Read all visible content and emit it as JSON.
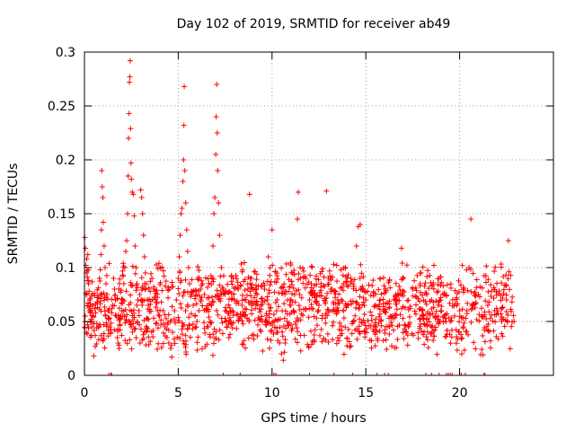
{
  "chart_data": {
    "type": "scatter",
    "title": "Day 102 of 2019, SRMTID for receiver ab49",
    "xlabel": "GPS time / hours",
    "ylabel": "SRMTID / TECUs",
    "xlim": [
      0,
      25
    ],
    "ylim": [
      0,
      0.3
    ],
    "xticks": [
      0,
      5,
      10,
      15,
      20
    ],
    "xtick_labels": [
      "0",
      "5",
      "10",
      "15",
      "20"
    ],
    "yticks": [
      0,
      0.05,
      0.1,
      0.15,
      0.2,
      0.25,
      0.3
    ],
    "ytick_labels": [
      "0",
      "0.05",
      "0.1",
      "0.15",
      "0.2",
      "0.25",
      "0.3"
    ],
    "grid": true,
    "marker": "+",
    "color": "#ff0000",
    "series": [
      {
        "name": "SRMTID",
        "points": [
          [
            0.02,
            0.128
          ],
          [
            0.05,
            0.118
          ],
          [
            0.08,
            0.102
          ],
          [
            0.1,
            0.095
          ],
          [
            0.12,
            0.108
          ],
          [
            0.15,
            0.088
          ],
          [
            0.18,
            0.112
          ],
          [
            0.2,
            0.098
          ],
          [
            0.22,
            0.085
          ],
          [
            0.25,
            0.078
          ],
          [
            0.28,
            0.07
          ],
          [
            0.3,
            0.064
          ],
          [
            0.32,
            0.058
          ],
          [
            0.35,
            0.052
          ],
          [
            0.38,
            0.06
          ],
          [
            0.4,
            0.045
          ],
          [
            0.42,
            0.05
          ],
          [
            0.45,
            0.065
          ],
          [
            0.48,
            0.055
          ],
          [
            0.5,
            0.048
          ],
          [
            0.55,
            0.062
          ],
          [
            0.6,
            0.058
          ],
          [
            0.65,
            0.044
          ],
          [
            0.7,
            0.068
          ],
          [
            0.75,
            0.072
          ],
          [
            0.8,
            0.09
          ],
          [
            0.85,
            0.098
          ],
          [
            0.88,
            0.112
          ],
          [
            0.9,
            0.135
          ],
          [
            0.92,
            0.19
          ],
          [
            0.95,
            0.175
          ],
          [
            0.98,
            0.165
          ],
          [
            1.0,
            0.142
          ],
          [
            1.05,
            0.12
          ],
          [
            1.1,
            0.1
          ],
          [
            1.15,
            0.085
          ],
          [
            1.2,
            0.075
          ],
          [
            1.25,
            0.06
          ],
          [
            1.3,
            0.052
          ],
          [
            1.35,
            0.045
          ],
          [
            1.4,
            0.04
          ],
          [
            1.45,
            0.058
          ],
          [
            1.5,
            0.065
          ],
          [
            1.55,
            0.09
          ],
          [
            1.6,
            0.08
          ],
          [
            1.65,
            0.07
          ],
          [
            1.7,
            0.055
          ],
          [
            1.75,
            0.035
          ],
          [
            1.8,
            0.03
          ],
          [
            1.85,
            0.025
          ],
          [
            1.9,
            0.042
          ],
          [
            1.95,
            0.055
          ],
          [
            2.0,
            0.06
          ],
          [
            2.05,
            0.07
          ],
          [
            2.1,
            0.085
          ],
          [
            2.15,
            0.1
          ],
          [
            2.2,
            0.115
          ],
          [
            2.25,
            0.125
          ],
          [
            2.3,
            0.15
          ],
          [
            2.33,
            0.185
          ],
          [
            2.35,
            0.22
          ],
          [
            2.38,
            0.243
          ],
          [
            2.4,
            0.272
          ],
          [
            2.42,
            0.277
          ],
          [
            2.44,
            0.292
          ],
          [
            2.46,
            0.229
          ],
          [
            2.48,
            0.197
          ],
          [
            2.5,
            0.182
          ],
          [
            2.55,
            0.17
          ],
          [
            2.6,
            0.168
          ],
          [
            2.65,
            0.148
          ],
          [
            2.7,
            0.12
          ],
          [
            2.75,
            0.1
          ],
          [
            2.8,
            0.085
          ],
          [
            2.85,
            0.07
          ],
          [
            2.9,
            0.06
          ],
          [
            2.95,
            0.075
          ],
          [
            3.0,
            0.172
          ],
          [
            3.05,
            0.165
          ],
          [
            3.1,
            0.15
          ],
          [
            3.15,
            0.13
          ],
          [
            3.2,
            0.11
          ],
          [
            3.25,
            0.095
          ],
          [
            3.3,
            0.085
          ],
          [
            3.35,
            0.07
          ],
          [
            3.4,
            0.065
          ],
          [
            3.5,
            0.078
          ],
          [
            3.6,
            0.09
          ],
          [
            3.7,
            0.082
          ],
          [
            3.8,
            0.07
          ],
          [
            3.9,
            0.06
          ],
          [
            4.0,
            0.055
          ],
          [
            4.1,
            0.068
          ],
          [
            4.2,
            0.06
          ],
          [
            4.3,
            0.045
          ],
          [
            4.4,
            0.035
          ],
          [
            4.5,
            0.03
          ],
          [
            4.6,
            0.025
          ],
          [
            4.65,
            0.017
          ],
          [
            4.7,
            0.04
          ],
          [
            4.8,
            0.06
          ],
          [
            4.9,
            0.07
          ],
          [
            5.0,
            0.09
          ],
          [
            5.05,
            0.11
          ],
          [
            5.1,
            0.13
          ],
          [
            5.15,
            0.15
          ],
          [
            5.2,
            0.155
          ],
          [
            5.25,
            0.18
          ],
          [
            5.28,
            0.2
          ],
          [
            5.3,
            0.232
          ],
          [
            5.32,
            0.268
          ],
          [
            5.35,
            0.19
          ],
          [
            5.4,
            0.16
          ],
          [
            5.45,
            0.135
          ],
          [
            5.5,
            0.115
          ],
          [
            5.55,
            0.1
          ],
          [
            5.6,
            0.085
          ],
          [
            5.7,
            0.075
          ],
          [
            5.8,
            0.065
          ],
          [
            5.9,
            0.055
          ],
          [
            6.0,
            0.05
          ],
          [
            6.1,
            0.06
          ],
          [
            6.2,
            0.07
          ],
          [
            6.3,
            0.085
          ],
          [
            6.4,
            0.075
          ],
          [
            6.5,
            0.06
          ],
          [
            6.6,
            0.045
          ],
          [
            6.7,
            0.05
          ],
          [
            6.8,
            0.09
          ],
          [
            6.85,
            0.12
          ],
          [
            6.9,
            0.15
          ],
          [
            6.95,
            0.165
          ],
          [
            7.0,
            0.205
          ],
          [
            7.02,
            0.24
          ],
          [
            7.05,
            0.27
          ],
          [
            7.08,
            0.225
          ],
          [
            7.1,
            0.19
          ],
          [
            7.15,
            0.16
          ],
          [
            7.2,
            0.13
          ],
          [
            7.3,
            0.1
          ],
          [
            7.4,
            0.08
          ],
          [
            7.5,
            0.06
          ],
          [
            7.6,
            0.045
          ],
          [
            7.7,
            0.035
          ],
          [
            7.8,
            0.05
          ],
          [
            7.9,
            0.06
          ],
          [
            8.0,
            0.07
          ],
          [
            8.2,
            0.08
          ],
          [
            8.4,
            0.065
          ],
          [
            8.6,
            0.07
          ],
          [
            8.8,
            0.168
          ],
          [
            8.9,
            0.09
          ],
          [
            9.0,
            0.08
          ],
          [
            9.2,
            0.075
          ],
          [
            9.4,
            0.065
          ],
          [
            9.6,
            0.08
          ],
          [
            9.8,
            0.11
          ],
          [
            10.0,
            0.135
          ],
          [
            10.1,
            0.05
          ],
          [
            10.3,
            0.04
          ],
          [
            10.4,
            0.03
          ],
          [
            10.5,
            0.02
          ],
          [
            10.6,
            0.014
          ],
          [
            10.7,
            0.03
          ],
          [
            10.8,
            0.05
          ],
          [
            11.0,
            0.065
          ],
          [
            11.2,
            0.075
          ],
          [
            11.35,
            0.145
          ],
          [
            11.4,
            0.17
          ],
          [
            11.5,
            0.1
          ],
          [
            11.8,
            0.09
          ],
          [
            12.0,
            0.07
          ],
          [
            12.5,
            0.065
          ],
          [
            12.9,
            0.171
          ],
          [
            13.0,
            0.09
          ],
          [
            13.2,
            0.08
          ],
          [
            13.5,
            0.07
          ],
          [
            14.0,
            0.065
          ],
          [
            14.2,
            0.09
          ],
          [
            14.5,
            0.12
          ],
          [
            14.6,
            0.138
          ],
          [
            14.7,
            0.14
          ],
          [
            15.0,
            0.07
          ],
          [
            15.5,
            0.065
          ],
          [
            16.0,
            0.06
          ],
          [
            16.5,
            0.07
          ],
          [
            16.9,
            0.118
          ],
          [
            17.0,
            0.09
          ],
          [
            17.5,
            0.08
          ],
          [
            17.9,
            0.085
          ],
          [
            18.0,
            0.06
          ],
          [
            18.5,
            0.07
          ],
          [
            19.0,
            0.06
          ],
          [
            19.5,
            0.05
          ],
          [
            20.0,
            0.06
          ],
          [
            20.5,
            0.1
          ],
          [
            20.6,
            0.145
          ],
          [
            21.0,
            0.075
          ],
          [
            21.5,
            0.065
          ],
          [
            22.0,
            0.06
          ],
          [
            22.5,
            0.07
          ],
          [
            22.6,
            0.125
          ],
          [
            22.9,
            0.05
          ]
        ]
      }
    ],
    "zero_markers_x": [
      1.3,
      1.4,
      1.45,
      7.4,
      8.3,
      10.1,
      10.2,
      12.0,
      13.3,
      14.3,
      15.6,
      16.0,
      16.2,
      18.2,
      18.5,
      18.9,
      19.3,
      19.4,
      19.5,
      19.6,
      20.0,
      20.1,
      20.3,
      21.3,
      21.35
    ]
  }
}
